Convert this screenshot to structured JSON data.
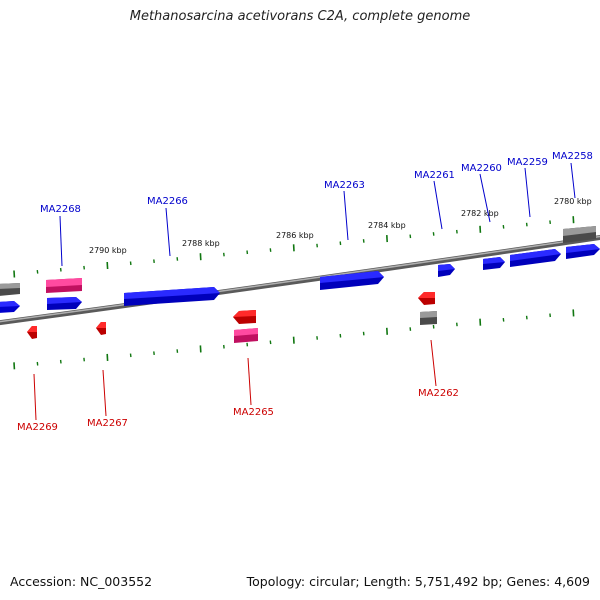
{
  "header": {
    "title": "Methanosarcina acetivorans C2A, complete genome"
  },
  "footer": {
    "accession": "Accession: NC_003552",
    "topology": "Topology: circular; Length: 5,751,492 bp; Genes: 4,609"
  },
  "colors": {
    "backbone": "#7a7a7a",
    "forward_gene": "#0000ee",
    "reverse_gene": "#ee0000",
    "rna_gene": "#ee2277",
    "other_feature": "#555555",
    "tick": "#117711",
    "forward_label": "#0000cc",
    "reverse_label": "#cc0000"
  },
  "scale_labels": [
    "2790 kbp",
    "2788 kbp",
    "2786 kbp",
    "2784 kbp",
    "2782 kbp",
    "2780 kbp"
  ],
  "forward_gene_labels": [
    "MA2268",
    "MA2266",
    "MA2263",
    "MA2261",
    "MA2260",
    "MA2259",
    "MA2258"
  ],
  "reverse_gene_labels": [
    "MA2269",
    "MA2267",
    "MA2265",
    "MA2262"
  ]
}
